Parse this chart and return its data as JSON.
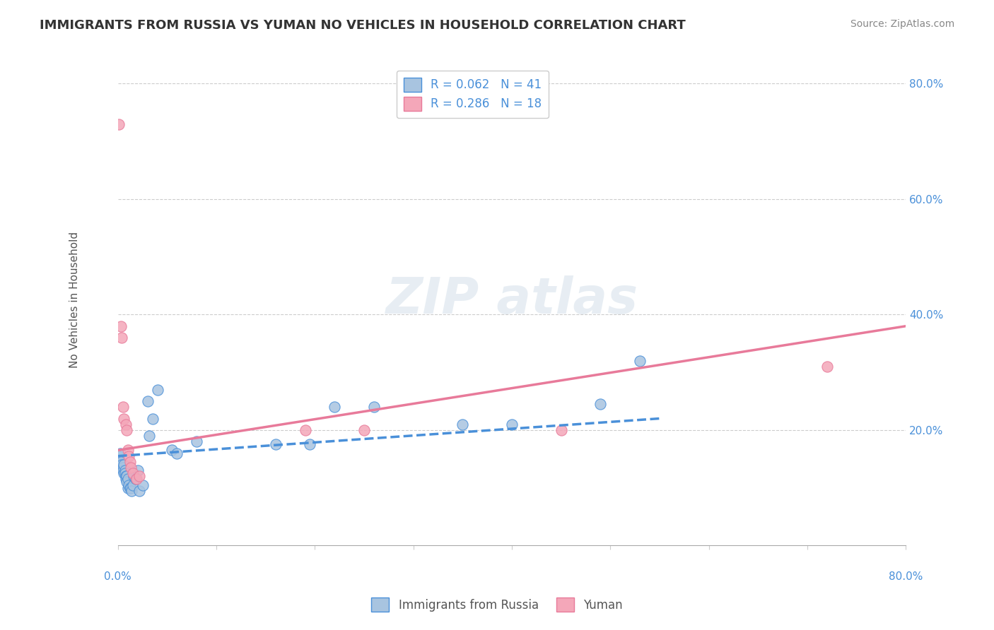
{
  "title": "IMMIGRANTS FROM RUSSIA VS YUMAN NO VEHICLES IN HOUSEHOLD CORRELATION CHART",
  "source": "Source: ZipAtlas.com",
  "ylabel": "No Vehicles in Household",
  "xlim": [
    0.0,
    0.8
  ],
  "ylim": [
    0.0,
    0.85
  ],
  "legend_label1": "R = 0.062   N = 41",
  "legend_label2": "R = 0.286   N = 18",
  "legend_entry1": "Immigrants from Russia",
  "legend_entry2": "Yuman",
  "color_blue": "#a8c4e0",
  "color_pink": "#f4a7b9",
  "line_blue": "#4a90d9",
  "line_pink": "#e87a9a",
  "background_color": "#ffffff",
  "blue_points": [
    [
      0.001,
      0.155
    ],
    [
      0.002,
      0.16
    ],
    [
      0.003,
      0.145
    ],
    [
      0.004,
      0.14
    ],
    [
      0.005,
      0.135
    ],
    [
      0.005,
      0.13
    ],
    [
      0.006,
      0.14
    ],
    [
      0.006,
      0.125
    ],
    [
      0.007,
      0.13
    ],
    [
      0.007,
      0.125
    ],
    [
      0.008,
      0.12
    ],
    [
      0.008,
      0.115
    ],
    [
      0.009,
      0.12
    ],
    [
      0.009,
      0.11
    ],
    [
      0.01,
      0.115
    ],
    [
      0.01,
      0.1
    ],
    [
      0.011,
      0.105
    ],
    [
      0.012,
      0.1
    ],
    [
      0.013,
      0.1
    ],
    [
      0.014,
      0.095
    ],
    [
      0.015,
      0.105
    ],
    [
      0.016,
      0.12
    ],
    [
      0.018,
      0.115
    ],
    [
      0.02,
      0.13
    ],
    [
      0.022,
      0.095
    ],
    [
      0.025,
      0.105
    ],
    [
      0.03,
      0.25
    ],
    [
      0.032,
      0.19
    ],
    [
      0.035,
      0.22
    ],
    [
      0.04,
      0.27
    ],
    [
      0.055,
      0.165
    ],
    [
      0.06,
      0.16
    ],
    [
      0.08,
      0.18
    ],
    [
      0.16,
      0.175
    ],
    [
      0.195,
      0.175
    ],
    [
      0.22,
      0.24
    ],
    [
      0.26,
      0.24
    ],
    [
      0.35,
      0.21
    ],
    [
      0.4,
      0.21
    ],
    [
      0.49,
      0.245
    ],
    [
      0.53,
      0.32
    ]
  ],
  "pink_points": [
    [
      0.001,
      0.73
    ],
    [
      0.003,
      0.38
    ],
    [
      0.004,
      0.36
    ],
    [
      0.005,
      0.24
    ],
    [
      0.006,
      0.22
    ],
    [
      0.008,
      0.21
    ],
    [
      0.009,
      0.2
    ],
    [
      0.01,
      0.165
    ],
    [
      0.011,
      0.155
    ],
    [
      0.012,
      0.145
    ],
    [
      0.013,
      0.135
    ],
    [
      0.015,
      0.125
    ],
    [
      0.019,
      0.115
    ],
    [
      0.022,
      0.12
    ],
    [
      0.19,
      0.2
    ],
    [
      0.25,
      0.2
    ],
    [
      0.45,
      0.2
    ],
    [
      0.72,
      0.31
    ]
  ],
  "blue_trend_x": [
    0.0,
    0.55
  ],
  "blue_trend_y": [
    0.155,
    0.22
  ],
  "pink_trend_x": [
    0.0,
    0.8
  ],
  "pink_trend_y": [
    0.165,
    0.38
  ]
}
